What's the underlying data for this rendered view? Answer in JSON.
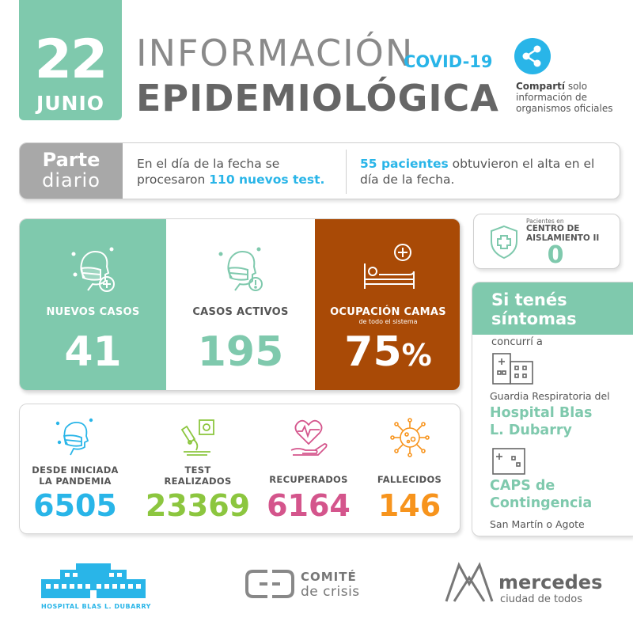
{
  "date": {
    "day": "22",
    "month": "JUNIO"
  },
  "title": {
    "line1": "INFORMACIÓN",
    "tag": "COVID-19",
    "line2": "EPIDEMIOLÓGICA"
  },
  "share": {
    "bold": "Compartí",
    "rest": " solo información de organismos oficiales",
    "icon": "share-icon"
  },
  "parte": {
    "label1": "Parte",
    "label2": "diario",
    "text1_a": "En el día de la fecha se procesaron ",
    "text1_hl": "110 nuevos test.",
    "text2_hl": "55 pacientes",
    "text2_b": " obtuvieron el alta en el día de la fecha."
  },
  "stats": {
    "nuevos": {
      "label": "NUEVOS  CASOS",
      "value": "41"
    },
    "activos": {
      "label": "CASOS ACTIVOS",
      "value": "195"
    },
    "camas": {
      "label": "OCUPACIÓN CAMAS",
      "sub": "de todo el sistema",
      "value": "75",
      "unit": "%"
    }
  },
  "totals": {
    "pandemia": {
      "label1": "DESDE INICIADA",
      "label2": "LA PANDEMIA",
      "value": "6505"
    },
    "test": {
      "label1": "TEST",
      "label2": "REALIZADOS",
      "value": "23369"
    },
    "recuperados": {
      "label1": "RECUPERADOS",
      "value": "6164"
    },
    "fallecidos": {
      "label1": "FALLECIDOS",
      "value": "146"
    }
  },
  "aislamiento": {
    "small": "Pacientes en",
    "title1": "CENTRO DE",
    "title2": "AISLAMIENTO II",
    "value": "0"
  },
  "sintomas": {
    "head1": "Si tenés",
    "head2": "síntomas",
    "concurri": "concurrí a",
    "guardia": "Guardia Respiratoria del",
    "hospital1": "Hospital Blas",
    "hospital2": "L. Dubarry",
    "caps1": "CAPS de",
    "caps2": "Contingencia",
    "direccion": "San Martín o Agote"
  },
  "footer": {
    "hospital": "HOSPITAL BLAS L. DUBARRY",
    "comite1": "COMITÉ",
    "comite2": "de crisis",
    "mercedes1": "mercedes",
    "mercedes2": "ciudad de todos"
  },
  "colors": {
    "green": "#7fc9ad",
    "blue": "#29b5e8",
    "brown": "#a94a06",
    "olive": "#8cc63f",
    "pink": "#d4558c",
    "orange": "#f7941d"
  }
}
